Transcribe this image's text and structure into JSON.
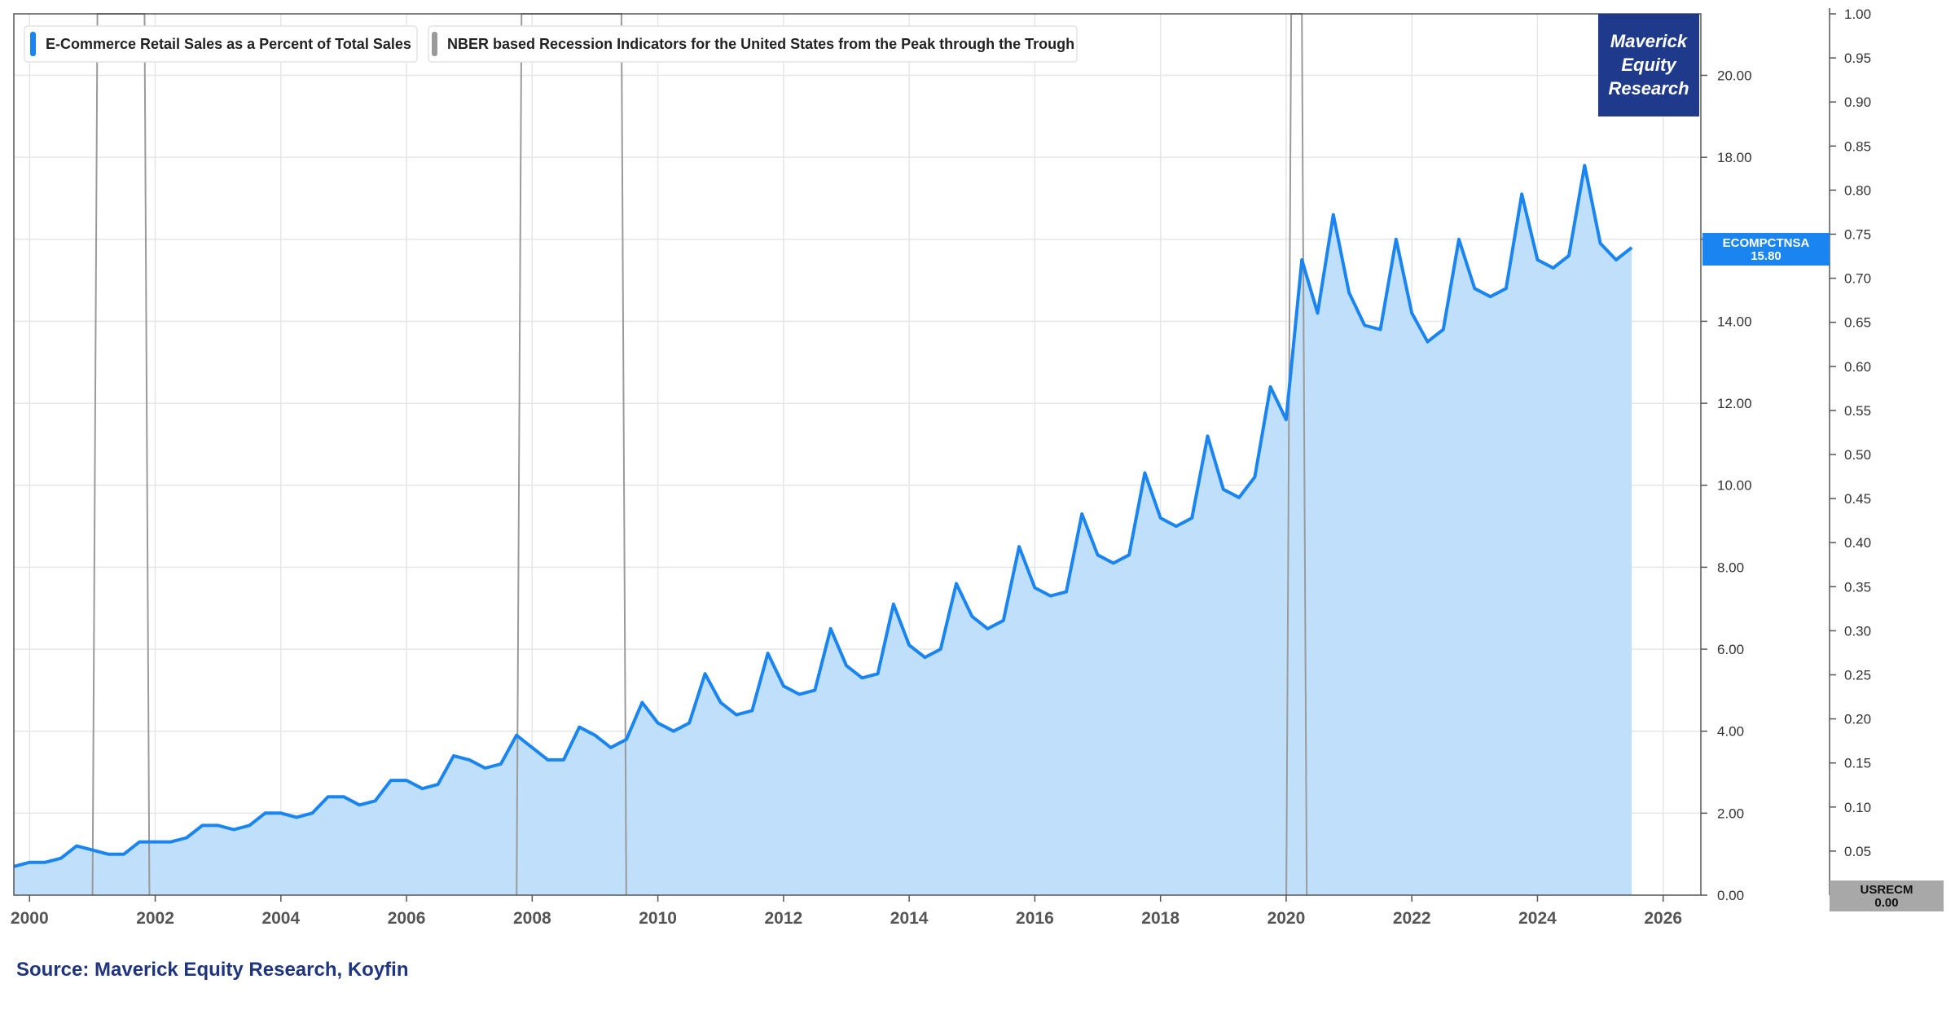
{
  "colors": {
    "series_line": "#1a85f0",
    "series_fill": "#bfdffb",
    "recession_line": "#9a9a9a",
    "logo_bg": "#1f3a8a",
    "source_text": "#1f3580",
    "usrecm_bg": "#a8a8a8"
  },
  "logo": {
    "line1": "Maverick",
    "line2": "Equity",
    "line3": "Research"
  },
  "source_text": "Source: Maverick Equity Research, Koyfin",
  "chart_data": {
    "type": "area",
    "legend_position": "top-left",
    "grid": true,
    "xlim": [
      1999.75,
      2026.6
    ],
    "ylim": [
      0,
      21.5
    ],
    "ylim_secondary": [
      0,
      1.0
    ],
    "x_ticks": [
      "2000",
      "2002",
      "2004",
      "2006",
      "2008",
      "2010",
      "2012",
      "2014",
      "2016",
      "2018",
      "2020",
      "2022",
      "2024",
      "2026"
    ],
    "y_ticks": [
      "0.00",
      "2.00",
      "4.00",
      "6.00",
      "8.00",
      "10.00",
      "12.00",
      "14.00",
      "16.00",
      "18.00",
      "20.00"
    ],
    "y2_ticks": [
      "0.00",
      "0.05",
      "0.10",
      "0.15",
      "0.20",
      "0.25",
      "0.30",
      "0.35",
      "0.40",
      "0.45",
      "0.50",
      "0.55",
      "0.60",
      "0.65",
      "0.70",
      "0.75",
      "0.80",
      "0.85",
      "0.90",
      "0.95",
      "1.00"
    ],
    "series": [
      {
        "name": "E-Commerce Retail Sales as a Percent of Total Sales",
        "code": "ECOMPCTNSA",
        "last_value": "15.80",
        "x": [
          1999.75,
          2000.0,
          2000.25,
          2000.5,
          2000.75,
          2001.0,
          2001.25,
          2001.5,
          2001.75,
          2002.0,
          2002.25,
          2002.5,
          2002.75,
          2003.0,
          2003.25,
          2003.5,
          2003.75,
          2004.0,
          2004.25,
          2004.5,
          2004.75,
          2005.0,
          2005.25,
          2005.5,
          2005.75,
          2006.0,
          2006.25,
          2006.5,
          2006.75,
          2007.0,
          2007.25,
          2007.5,
          2007.75,
          2008.0,
          2008.25,
          2008.5,
          2008.75,
          2009.0,
          2009.25,
          2009.5,
          2009.75,
          2010.0,
          2010.25,
          2010.5,
          2010.75,
          2011.0,
          2011.25,
          2011.5,
          2011.75,
          2012.0,
          2012.25,
          2012.5,
          2012.75,
          2013.0,
          2013.25,
          2013.5,
          2013.75,
          2014.0,
          2014.25,
          2014.5,
          2014.75,
          2015.0,
          2015.25,
          2015.5,
          2015.75,
          2016.0,
          2016.25,
          2016.5,
          2016.75,
          2017.0,
          2017.25,
          2017.5,
          2017.75,
          2018.0,
          2018.25,
          2018.5,
          2018.75,
          2019.0,
          2019.25,
          2019.5,
          2019.75,
          2020.0,
          2020.25,
          2020.5,
          2020.75,
          2021.0,
          2021.25,
          2021.5,
          2021.75,
          2022.0,
          2022.25,
          2022.5,
          2022.75,
          2023.0,
          2023.25,
          2023.5,
          2023.75,
          2024.0,
          2024.25,
          2024.5,
          2024.75,
          2025.0,
          2025.25,
          2025.5
        ],
        "values": [
          0.7,
          0.8,
          0.8,
          0.9,
          1.2,
          1.1,
          1.0,
          1.0,
          1.3,
          1.3,
          1.3,
          1.4,
          1.7,
          1.7,
          1.6,
          1.7,
          2.0,
          2.0,
          1.9,
          2.0,
          2.4,
          2.4,
          2.2,
          2.3,
          2.8,
          2.8,
          2.6,
          2.7,
          3.4,
          3.3,
          3.1,
          3.2,
          3.9,
          3.6,
          3.3,
          3.3,
          4.1,
          3.9,
          3.6,
          3.8,
          4.7,
          4.2,
          4.0,
          4.2,
          5.4,
          4.7,
          4.4,
          4.5,
          5.9,
          5.1,
          4.9,
          5.0,
          6.5,
          5.6,
          5.3,
          5.4,
          7.1,
          6.1,
          5.8,
          6.0,
          7.6,
          6.8,
          6.5,
          6.7,
          8.5,
          7.5,
          7.3,
          7.4,
          9.3,
          8.3,
          8.1,
          8.3,
          10.3,
          9.2,
          9.0,
          9.2,
          11.2,
          9.9,
          9.7,
          10.2,
          12.4,
          11.6,
          15.5,
          14.2,
          16.6,
          14.7,
          13.9,
          13.8,
          16.0,
          14.2,
          13.5,
          13.8,
          16.0,
          14.8,
          14.6,
          14.8,
          17.1,
          15.5,
          15.3,
          15.6,
          17.8,
          15.9,
          15.5,
          15.8
        ]
      },
      {
        "name": "NBER based Recession Indicators for the United States from the Peak through the Trough",
        "code": "USRECM",
        "last_value": "0.00",
        "periods": [
          [
            2001.08,
            2001.83
          ],
          [
            2007.83,
            2009.42
          ],
          [
            2020.08,
            2020.25
          ]
        ]
      }
    ]
  }
}
